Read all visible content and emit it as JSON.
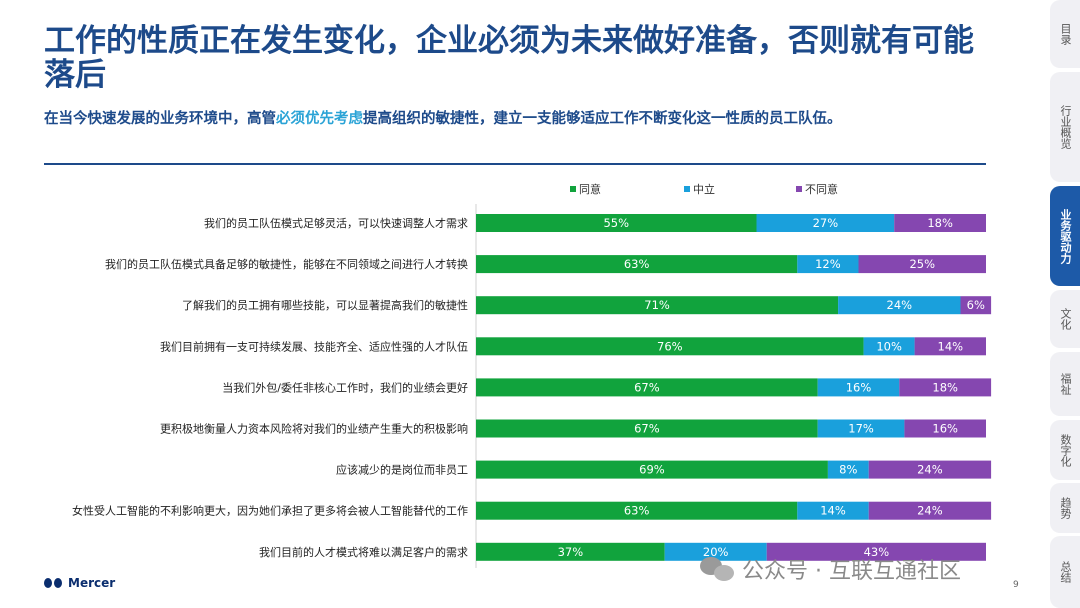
{
  "header": {
    "title": "工作的性质正在发生变化，企业必须为未来做好准备，否则就有可能落后",
    "subtitle_pre": "在当今快速发展的业务环境中，高管",
    "subtitle_mark": "必须优先考虑",
    "subtitle_post": "提高组织的敏捷性，建立一支能够适应工作不断变化这一性质的员工队伍。"
  },
  "nav": {
    "tabs": [
      {
        "label": "目录",
        "active": false
      },
      {
        "label": "行业概览",
        "active": false
      },
      {
        "label": "业务驱动力",
        "active": true
      },
      {
        "label": "文化",
        "active": false
      },
      {
        "label": "福祉",
        "active": false
      },
      {
        "label": "数字化",
        "active": false
      },
      {
        "label": "趋势",
        "active": false
      },
      {
        "label": "总结",
        "active": false
      }
    ]
  },
  "footer": {
    "logo_text": "Mercer",
    "watermark": "公众号 · 互联互通社区",
    "page_number": "9"
  },
  "colors": {
    "agree": "#11a33d",
    "neutral": "#1aa0dc",
    "disagree": "#8547b0",
    "title": "#1d4a8a"
  },
  "chart_data": {
    "type": "bar",
    "orientation": "horizontal",
    "stacked": true,
    "categories": [
      "我们的员工队伍模式足够灵活，可以快速调整人才需求",
      "我们的员工队伍模式具备足够的敏捷性，能够在不同领域之间进行人才转换",
      "了解我们的员工拥有哪些技能，可以显著提高我们的敏捷性",
      "我们目前拥有一支可持续发展、技能齐全、适应性强的人才队伍",
      "当我们外包/委任非核心工作时，我们的业绩会更好",
      "更积极地衡量人力资本风险将对我们的业绩产生重大的积极影响",
      "应该减少的是岗位而非员工",
      "女性受人工智能的不利影响更大，因为她们承担了更多将会被人工智能替代的工作",
      "我们目前的人才模式将难以满足客户的需求"
    ],
    "series": [
      {
        "name": "同意",
        "values": [
          55,
          63,
          71,
          76,
          67,
          67,
          69,
          63,
          37
        ]
      },
      {
        "name": "中立",
        "values": [
          27,
          12,
          24,
          10,
          16,
          17,
          8,
          14,
          20
        ]
      },
      {
        "name": "不同意",
        "values": [
          18,
          25,
          6,
          14,
          18,
          16,
          24,
          24,
          43
        ]
      }
    ],
    "value_suffix": "%",
    "xlim": [
      0,
      100
    ],
    "legend": "top",
    "grid": false
  }
}
